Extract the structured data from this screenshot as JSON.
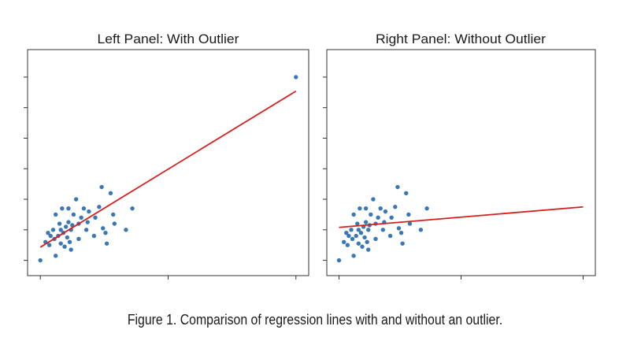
{
  "caption": "Figure 1. Comparison of regression lines with and without an outlier.",
  "colors": {
    "points": "#3a78b5",
    "line": "#d62020",
    "axes": "#333333"
  },
  "chart_data": [
    {
      "type": "scatter",
      "title": "Left Panel: With Outlier",
      "xlabel": "",
      "ylabel": "",
      "xlim": [
        -0.5,
        10.5
      ],
      "ylim": [
        -0.5,
        6.9
      ],
      "x_ticks": [
        0,
        5,
        10
      ],
      "y_ticks": [
        0,
        1,
        2,
        3,
        4,
        5,
        6
      ],
      "tick_labels_shown": false,
      "grid": false,
      "legend": "none",
      "points": [
        [
          0.0,
          0.0
        ],
        [
          0.2,
          0.6
        ],
        [
          0.3,
          0.9
        ],
        [
          0.35,
          0.5
        ],
        [
          0.4,
          0.8
        ],
        [
          0.5,
          1.0
        ],
        [
          0.55,
          0.7
        ],
        [
          0.6,
          1.5
        ],
        [
          0.6,
          0.15
        ],
        [
          0.7,
          0.8
        ],
        [
          0.75,
          1.2
        ],
        [
          0.8,
          1.0
        ],
        [
          0.8,
          0.55
        ],
        [
          0.85,
          1.7
        ],
        [
          0.9,
          0.9
        ],
        [
          0.95,
          0.45
        ],
        [
          1.0,
          1.1
        ],
        [
          1.05,
          0.75
        ],
        [
          1.1,
          1.7
        ],
        [
          1.1,
          1.25
        ],
        [
          1.15,
          0.6
        ],
        [
          1.2,
          1.0
        ],
        [
          1.2,
          0.35
        ],
        [
          1.25,
          1.15
        ],
        [
          1.3,
          1.5
        ],
        [
          1.4,
          2.0
        ],
        [
          1.5,
          1.2
        ],
        [
          1.5,
          0.7
        ],
        [
          1.6,
          1.4
        ],
        [
          1.7,
          1.7
        ],
        [
          1.8,
          1.0
        ],
        [
          1.85,
          1.25
        ],
        [
          1.9,
          1.6
        ],
        [
          2.1,
          0.8
        ],
        [
          2.15,
          1.4
        ],
        [
          2.3,
          1.75
        ],
        [
          2.4,
          2.4
        ],
        [
          2.45,
          1.05
        ],
        [
          2.55,
          0.9
        ],
        [
          2.6,
          0.55
        ],
        [
          2.75,
          2.2
        ],
        [
          2.85,
          1.5
        ],
        [
          2.9,
          1.2
        ],
        [
          3.35,
          1.0
        ],
        [
          3.6,
          1.7
        ],
        [
          10.0,
          6.0
        ]
      ],
      "regression": {
        "x": [
          0.0,
          10.0
        ],
        "y": [
          0.43,
          5.54
        ]
      }
    },
    {
      "type": "scatter",
      "title": "Right Panel: Without Outlier",
      "xlabel": "",
      "ylabel": "",
      "xlim": [
        -0.5,
        10.5
      ],
      "ylim": [
        -0.5,
        6.9
      ],
      "x_ticks": [
        0,
        5,
        10
      ],
      "y_ticks": [
        0,
        1,
        2,
        3,
        4,
        5,
        6
      ],
      "tick_labels_shown": false,
      "grid": false,
      "legend": "none",
      "points": [
        [
          0.0,
          0.0
        ],
        [
          0.2,
          0.6
        ],
        [
          0.3,
          0.9
        ],
        [
          0.35,
          0.5
        ],
        [
          0.4,
          0.8
        ],
        [
          0.5,
          1.0
        ],
        [
          0.55,
          0.7
        ],
        [
          0.6,
          1.5
        ],
        [
          0.6,
          0.15
        ],
        [
          0.7,
          0.8
        ],
        [
          0.75,
          1.2
        ],
        [
          0.8,
          1.0
        ],
        [
          0.8,
          0.55
        ],
        [
          0.85,
          1.7
        ],
        [
          0.9,
          0.9
        ],
        [
          0.95,
          0.45
        ],
        [
          1.0,
          1.1
        ],
        [
          1.05,
          0.75
        ],
        [
          1.1,
          1.7
        ],
        [
          1.1,
          1.25
        ],
        [
          1.15,
          0.6
        ],
        [
          1.2,
          1.0
        ],
        [
          1.2,
          0.35
        ],
        [
          1.25,
          1.15
        ],
        [
          1.3,
          1.5
        ],
        [
          1.4,
          2.0
        ],
        [
          1.5,
          1.2
        ],
        [
          1.5,
          0.7
        ],
        [
          1.6,
          1.4
        ],
        [
          1.7,
          1.7
        ],
        [
          1.8,
          1.0
        ],
        [
          1.85,
          1.25
        ],
        [
          1.9,
          1.6
        ],
        [
          2.1,
          0.8
        ],
        [
          2.15,
          1.4
        ],
        [
          2.3,
          1.75
        ],
        [
          2.4,
          2.4
        ],
        [
          2.45,
          1.05
        ],
        [
          2.55,
          0.9
        ],
        [
          2.6,
          0.55
        ],
        [
          2.75,
          2.2
        ],
        [
          2.85,
          1.5
        ],
        [
          2.9,
          1.2
        ],
        [
          3.35,
          1.0
        ],
        [
          3.6,
          1.7
        ]
      ],
      "regression": {
        "x": [
          0.0,
          10.0
        ],
        "y": [
          1.08,
          1.75
        ]
      }
    }
  ]
}
